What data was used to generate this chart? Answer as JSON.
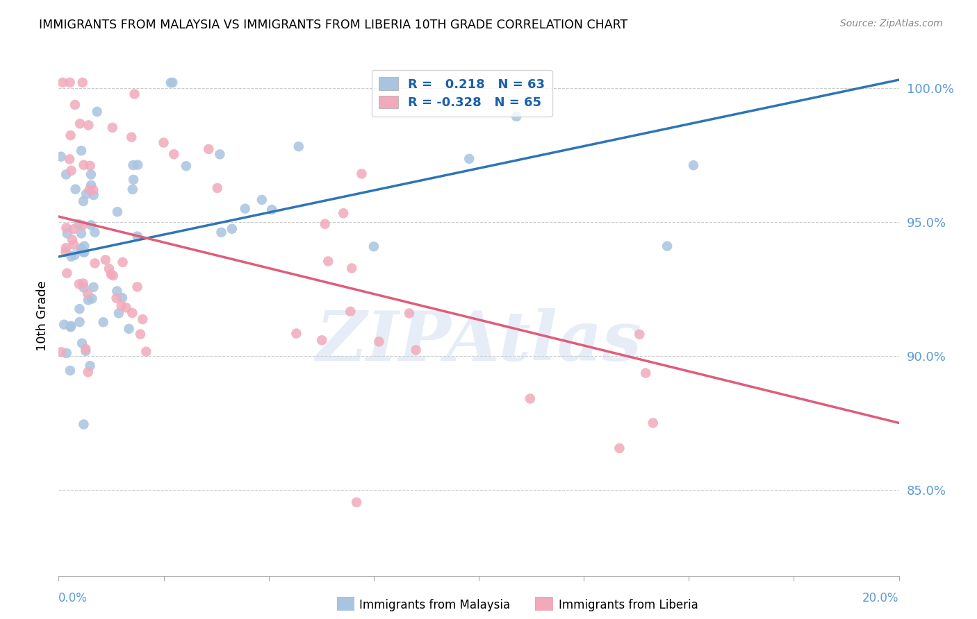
{
  "title": "IMMIGRANTS FROM MALAYSIA VS IMMIGRANTS FROM LIBERIA 10TH GRADE CORRELATION CHART",
  "source": "Source: ZipAtlas.com",
  "ylabel": "10th Grade",
  "xlim": [
    0.0,
    0.2
  ],
  "ylim": [
    0.818,
    1.012
  ],
  "yticks": [
    0.85,
    0.9,
    0.95,
    1.0
  ],
  "ytick_labels": [
    "85.0%",
    "90.0%",
    "95.0%",
    "100.0%"
  ],
  "ytick_color": "#5b9bd5",
  "xtick_color": "#5b9bd5",
  "malaysia_color": "#a8c4e0",
  "liberia_color": "#f2aabb",
  "malaysia_line_color": "#2e75b6",
  "liberia_line_color": "#e05c7a",
  "malaysia_R": 0.218,
  "malaysia_N": 63,
  "liberia_R": -0.328,
  "liberia_N": 65,
  "watermark": "ZIPAtlas",
  "mal_line_x": [
    0.0,
    0.2
  ],
  "mal_line_y": [
    0.937,
    1.003
  ],
  "lib_line_x": [
    0.0,
    0.2
  ],
  "lib_line_y": [
    0.952,
    0.875
  ]
}
